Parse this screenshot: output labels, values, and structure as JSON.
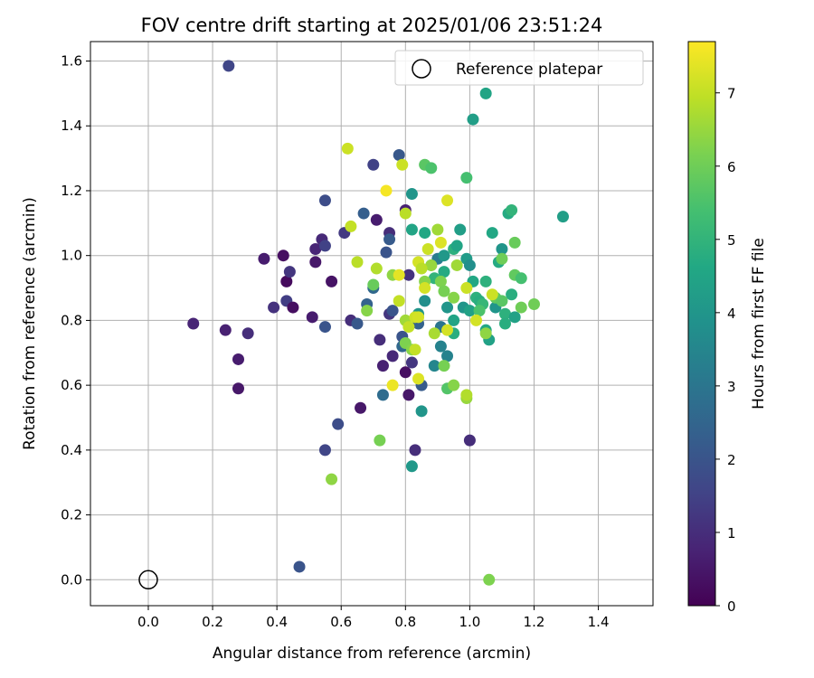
{
  "chart_data": {
    "type": "scatter",
    "title": "FOV centre drift starting at 2025/01/06 23:51:24",
    "xlabel": "Angular distance from reference (arcmin)",
    "ylabel": "Rotation from reference (arcmin)",
    "xlim": [
      -0.18,
      1.57
    ],
    "ylim": [
      -0.08,
      1.66
    ],
    "xticks": [
      "0.0",
      "0.2",
      "0.4",
      "0.6",
      "0.8",
      "1.0",
      "1.2",
      "1.4"
    ],
    "xtick_values": [
      0.0,
      0.2,
      0.4,
      0.6,
      0.8,
      1.0,
      1.2,
      1.4
    ],
    "yticks": [
      "0.0",
      "0.2",
      "0.4",
      "0.6",
      "0.8",
      "1.0",
      "1.2",
      "1.4",
      "1.6"
    ],
    "ytick_values": [
      0.0,
      0.2,
      0.4,
      0.6,
      0.8,
      1.0,
      1.2,
      1.4,
      1.6
    ],
    "grid": true,
    "legend": {
      "position": "top-right",
      "entries": [
        "Reference platepar"
      ]
    },
    "reference_point": {
      "x": 0.0,
      "y": 0.0
    },
    "colorbar": {
      "label": "Hours from first FF file",
      "colormap": "viridis",
      "range": [
        0,
        7.7
      ],
      "ticks": [
        "0",
        "1",
        "2",
        "3",
        "4",
        "5",
        "6",
        "7"
      ],
      "tick_values": [
        0,
        1,
        2,
        3,
        4,
        5,
        6,
        7
      ]
    },
    "points": [
      [
        0.14,
        0.79,
        0.8
      ],
      [
        0.24,
        0.77,
        0.7
      ],
      [
        0.28,
        0.68,
        0.6
      ],
      [
        0.28,
        0.59,
        0.5
      ],
      [
        0.31,
        0.76,
        1.0
      ],
      [
        0.25,
        1.585,
        1.6
      ],
      [
        0.36,
        0.99,
        0.6
      ],
      [
        0.39,
        0.84,
        1.1
      ],
      [
        0.42,
        1.0,
        0.3
      ],
      [
        0.43,
        0.92,
        0.2
      ],
      [
        0.43,
        0.86,
        1.4
      ],
      [
        0.44,
        0.95,
        1.2
      ],
      [
        0.45,
        0.84,
        0.3
      ],
      [
        0.51,
        0.81,
        0.6
      ],
      [
        0.52,
        1.02,
        0.8
      ],
      [
        0.52,
        0.98,
        0.5
      ],
      [
        0.54,
        1.05,
        0.9
      ],
      [
        0.55,
        1.03,
        1.5
      ],
      [
        0.55,
        0.78,
        2.0
      ],
      [
        0.55,
        1.17,
        1.8
      ],
      [
        0.55,
        0.4,
        1.6
      ],
      [
        0.57,
        0.92,
        0.4
      ],
      [
        0.59,
        0.48,
        1.8
      ],
      [
        0.61,
        1.07,
        1.3
      ],
      [
        0.63,
        0.8,
        1.0
      ],
      [
        0.65,
        0.79,
        2.1
      ],
      [
        0.66,
        0.53,
        0.5
      ],
      [
        0.67,
        1.13,
        2.3
      ],
      [
        0.68,
        0.85,
        2.4
      ],
      [
        0.7,
        0.9,
        2.6
      ],
      [
        0.7,
        1.28,
        1.5
      ],
      [
        0.71,
        1.11,
        0.6
      ],
      [
        0.72,
        0.74,
        1.0
      ],
      [
        0.73,
        0.66,
        0.7
      ],
      [
        0.73,
        0.57,
        2.7
      ],
      [
        0.74,
        1.01,
        2.0
      ],
      [
        0.75,
        1.07,
        1.0
      ],
      [
        0.75,
        1.05,
        2.2
      ],
      [
        0.75,
        0.82,
        1.2
      ],
      [
        0.76,
        0.83,
        2.0
      ],
      [
        0.76,
        0.69,
        0.9
      ],
      [
        0.78,
        1.31,
        2.1
      ],
      [
        0.79,
        0.75,
        2.0
      ],
      [
        0.79,
        0.72,
        2.6
      ],
      [
        0.8,
        1.14,
        0.7
      ],
      [
        0.8,
        0.64,
        0.3
      ],
      [
        0.81,
        0.94,
        1.1
      ],
      [
        0.81,
        0.57,
        0.5
      ],
      [
        0.82,
        0.67,
        1.2
      ],
      [
        0.83,
        0.4,
        1.0
      ],
      [
        0.84,
        0.79,
        2.4
      ],
      [
        0.85,
        0.6,
        2.2
      ],
      [
        0.47,
        0.04,
        2.0
      ],
      [
        1.0,
        0.43,
        1.0
      ],
      [
        0.82,
        0.35,
        4.1
      ],
      [
        0.85,
        0.52,
        4.0
      ],
      [
        0.82,
        1.19,
        4.0
      ],
      [
        0.82,
        1.08,
        4.5
      ],
      [
        0.84,
        0.82,
        4.0
      ],
      [
        0.86,
        1.07,
        4.6
      ],
      [
        0.86,
        0.86,
        3.8
      ],
      [
        0.88,
        0.97,
        4.8
      ],
      [
        0.89,
        0.66,
        3.5
      ],
      [
        0.89,
        0.93,
        5.0
      ],
      [
        0.9,
        0.99,
        3.2
      ],
      [
        0.91,
        0.72,
        3.4
      ],
      [
        0.91,
        0.78,
        3.0
      ],
      [
        0.92,
        0.95,
        4.7
      ],
      [
        0.92,
        1.0,
        4.1
      ],
      [
        0.93,
        0.69,
        3.4
      ],
      [
        0.93,
        0.84,
        4.0
      ],
      [
        0.95,
        0.8,
        4.5
      ],
      [
        0.95,
        0.76,
        4.8
      ],
      [
        0.95,
        1.02,
        4.9
      ],
      [
        0.96,
        1.03,
        4.5
      ],
      [
        0.97,
        1.08,
        4.3
      ],
      [
        0.98,
        0.84,
        4.0
      ],
      [
        0.99,
        0.99,
        4.2
      ],
      [
        1.0,
        0.97,
        3.8
      ],
      [
        1.0,
        0.83,
        4.4
      ],
      [
        1.01,
        0.92,
        4.6
      ],
      [
        1.01,
        1.42,
        4.3
      ],
      [
        1.02,
        0.87,
        4.9
      ],
      [
        1.03,
        0.86,
        4.8
      ],
      [
        1.04,
        0.85,
        5.1
      ],
      [
        1.05,
        1.5,
        4.5
      ],
      [
        1.05,
        0.92,
        4.9
      ],
      [
        1.05,
        0.77,
        4.6
      ],
      [
        1.06,
        0.74,
        4.4
      ],
      [
        1.07,
        1.07,
        4.6
      ],
      [
        1.08,
        0.84,
        4.0
      ],
      [
        1.09,
        0.98,
        4.7
      ],
      [
        1.1,
        1.02,
        4.0
      ],
      [
        1.11,
        0.82,
        4.9
      ],
      [
        1.11,
        0.79,
        4.8
      ],
      [
        1.12,
        1.13,
        4.7
      ],
      [
        1.13,
        1.14,
        5.0
      ],
      [
        1.13,
        0.88,
        4.8
      ],
      [
        1.14,
        0.81,
        4.4
      ],
      [
        1.29,
        1.12,
        4.3
      ],
      [
        0.99,
        1.24,
        5.4
      ],
      [
        0.86,
        1.28,
        5.7
      ],
      [
        0.88,
        1.27,
        5.5
      ],
      [
        0.93,
        0.59,
        5.6
      ],
      [
        0.95,
        0.6,
        6.3
      ],
      [
        0.99,
        0.56,
        6.5
      ],
      [
        1.03,
        0.83,
        5.5
      ],
      [
        1.08,
        0.87,
        5.8
      ],
      [
        1.1,
        0.86,
        5.7
      ],
      [
        1.1,
        0.99,
        6.0
      ],
      [
        1.14,
        1.04,
        5.9
      ],
      [
        1.14,
        0.94,
        5.8
      ],
      [
        1.16,
        0.93,
        5.4
      ],
      [
        1.16,
        0.84,
        6.0
      ],
      [
        1.2,
        0.85,
        6.0
      ],
      [
        0.68,
        0.83,
        6.3
      ],
      [
        0.7,
        0.91,
        5.9
      ],
      [
        0.72,
        0.43,
        6.1
      ],
      [
        0.57,
        0.31,
        6.4
      ],
      [
        0.76,
        0.94,
        6.4
      ],
      [
        0.8,
        0.73,
        6.2
      ],
      [
        0.8,
        0.8,
        6.6
      ],
      [
        0.82,
        0.71,
        6.3
      ],
      [
        0.86,
        0.92,
        6.3
      ],
      [
        0.88,
        0.97,
        6.5
      ],
      [
        0.89,
        0.76,
        6.7
      ],
      [
        0.9,
        1.08,
        6.6
      ],
      [
        0.91,
        0.92,
        6.2
      ],
      [
        0.92,
        0.89,
        6.1
      ],
      [
        0.92,
        0.66,
        6.1
      ],
      [
        0.95,
        0.87,
        6.3
      ],
      [
        0.96,
        0.97,
        6.6
      ],
      [
        0.99,
        0.57,
        6.8
      ],
      [
        1.05,
        0.76,
        6.4
      ],
      [
        1.06,
        0.0,
        6.2
      ],
      [
        0.8,
        1.13,
        6.9
      ],
      [
        0.83,
        0.81,
        7.1
      ],
      [
        0.84,
        0.98,
        7.2
      ],
      [
        0.85,
        0.96,
        6.9
      ],
      [
        0.87,
        1.02,
        7.1
      ],
      [
        0.62,
        1.33,
        7.1
      ],
      [
        0.63,
        1.09,
        7.0
      ],
      [
        0.65,
        0.98,
        6.9
      ],
      [
        0.71,
        0.96,
        6.8
      ],
      [
        0.78,
        0.86,
        7.0
      ],
      [
        0.79,
        1.28,
        7.1
      ],
      [
        0.81,
        0.78,
        7.0
      ],
      [
        0.83,
        0.71,
        7.0
      ],
      [
        0.84,
        0.62,
        7.3
      ],
      [
        0.86,
        0.9,
        7.2
      ],
      [
        0.91,
        1.04,
        7.3
      ],
      [
        0.93,
        1.17,
        7.3
      ],
      [
        0.93,
        0.77,
        7.2
      ],
      [
        0.99,
        0.9,
        7.1
      ],
      [
        1.02,
        0.8,
        7.2
      ],
      [
        1.07,
        0.88,
        7.1
      ],
      [
        0.74,
        1.2,
        7.6
      ],
      [
        0.76,
        0.6,
        7.5
      ],
      [
        0.78,
        0.94,
        7.4
      ],
      [
        0.84,
        0.81,
        7.2
      ]
    ]
  }
}
